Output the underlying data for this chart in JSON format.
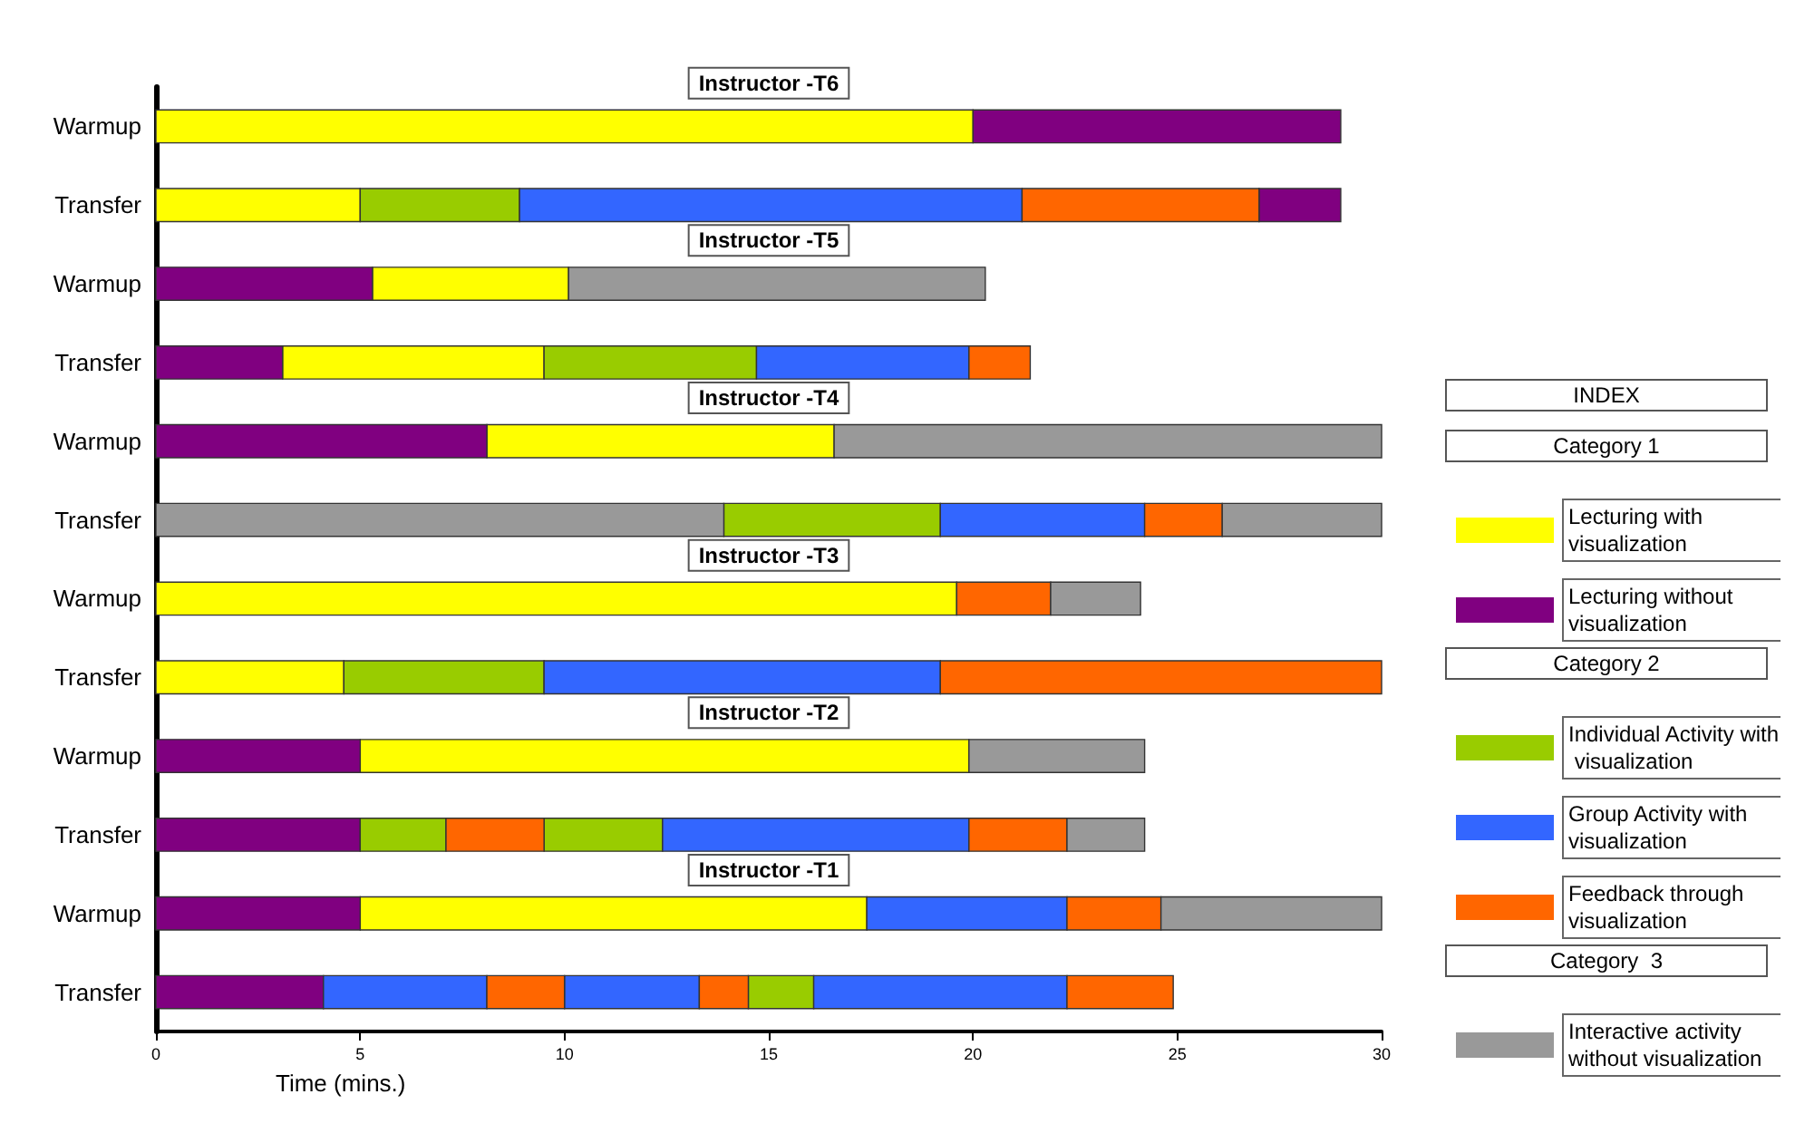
{
  "chart_data": {
    "type": "bar",
    "orientation": "horizontal",
    "legend": "right",
    "legend_title": "INDEX",
    "xlabel": "Time (mins.)",
    "xlim": [
      0,
      30
    ],
    "xticks": [
      0,
      5,
      10,
      15,
      20,
      25,
      30
    ],
    "categories": [
      "Warmup",
      "Transfer",
      "Warmup",
      "Transfer",
      "Warmup",
      "Transfer",
      "Warmup",
      "Transfer",
      "Warmup",
      "Transfer",
      "Warmup",
      "Transfer"
    ],
    "annotations": [
      "Instructor -T6",
      "Instructor -T5",
      "Instructor -T4",
      "Instructor -T3",
      "Instructor -T2",
      "Instructor -T1",
      "Category 1",
      "Category 2",
      "Category  3"
    ],
    "series": [
      {
        "name": "Lecturing with visualization",
        "color": "#ffff00",
        "base": [
          0,
          0,
          5.3,
          3.1,
          8.1,
          null,
          0,
          0,
          5,
          null,
          5,
          null
        ],
        "values": [
          20,
          5,
          4.8,
          6.4,
          8.5,
          null,
          19.6,
          4.6,
          14.9,
          null,
          12.4,
          null
        ]
      },
      {
        "name": "Lecturing without visualization",
        "color": "#800080",
        "base": [
          20,
          27,
          0,
          0,
          0,
          null,
          null,
          null,
          0,
          0,
          0,
          0
        ],
        "values": [
          9,
          2,
          5.3,
          3.1,
          8.1,
          null,
          null,
          null,
          5,
          5,
          5,
          4.1
        ]
      },
      {
        "name": "Individual Activity with visualization",
        "color": "#99cc00",
        "base": [
          null,
          5,
          null,
          9.5,
          null,
          13.9,
          null,
          4.6,
          null,
          5,
          null,
          14.5
        ],
        "values": [
          null,
          3.9,
          null,
          5.2,
          null,
          5.3,
          null,
          4.9,
          null,
          2.1,
          null,
          1.6
        ]
      },
      {
        "color": "#99cc00",
        "base": [
          null,
          null,
          null,
          null,
          null,
          null,
          null,
          null,
          null,
          9.5,
          null,
          null
        ],
        "values": [
          null,
          null,
          null,
          null,
          null,
          null,
          null,
          null,
          null,
          2.9,
          null,
          null
        ]
      },
      {
        "name": "Group Activity with visualization",
        "color": "#3366ff",
        "base": [
          null,
          8.9,
          null,
          14.7,
          null,
          19.2,
          null,
          9.5,
          null,
          12.4,
          17.4,
          4.1
        ],
        "values": [
          null,
          12.3,
          null,
          5.2,
          null,
          5,
          null,
          9.7,
          null,
          7.5,
          4.9,
          4
        ]
      },
      {
        "color": "#3366ff",
        "base": [
          null,
          null,
          null,
          null,
          null,
          null,
          null,
          null,
          null,
          null,
          null,
          10
        ],
        "values": [
          null,
          null,
          null,
          null,
          null,
          null,
          null,
          null,
          null,
          null,
          null,
          3.3
        ]
      },
      {
        "color": "#3366ff",
        "base": [
          null,
          null,
          null,
          null,
          null,
          null,
          null,
          null,
          null,
          null,
          null,
          16.1
        ],
        "values": [
          null,
          null,
          null,
          null,
          null,
          null,
          null,
          null,
          null,
          null,
          null,
          6.2
        ]
      },
      {
        "name": "Feedback through visualization",
        "color": "#ff6600",
        "base": [
          null,
          21.2,
          null,
          19.9,
          null,
          24.2,
          19.6,
          19.2,
          null,
          7.1,
          22.3,
          8.1
        ],
        "values": [
          null,
          5.8,
          null,
          1.5,
          null,
          1.9,
          2.3,
          10.8,
          null,
          2.4,
          2.3,
          1.9
        ]
      },
      {
        "color": "#ff6600",
        "base": [
          null,
          null,
          null,
          null,
          null,
          null,
          null,
          null,
          null,
          19.9,
          null,
          13.3
        ],
        "values": [
          null,
          null,
          null,
          null,
          null,
          null,
          null,
          null,
          null,
          2.4,
          null,
          1.2
        ]
      },
      {
        "color": "#ff6600",
        "base": [
          null,
          null,
          null,
          null,
          null,
          null,
          null,
          null,
          null,
          null,
          null,
          22.3
        ],
        "values": [
          null,
          null,
          null,
          null,
          null,
          null,
          null,
          null,
          null,
          null,
          null,
          2.6
        ]
      },
      {
        "name": "Interactive activity without visualization",
        "color": "#999999",
        "base": [
          null,
          null,
          10.1,
          null,
          16.6,
          0,
          21.9,
          null,
          19.9,
          22.3,
          24.6,
          null
        ],
        "values": [
          null,
          null,
          10.2,
          null,
          13.4,
          13.9,
          2.2,
          null,
          4.3,
          1.9,
          5.4,
          null
        ]
      },
      {
        "color": "#999999",
        "base": [
          null,
          null,
          null,
          null,
          null,
          26.1,
          null,
          null,
          null,
          null,
          null,
          null
        ],
        "values": [
          null,
          null,
          null,
          null,
          null,
          3.9,
          null,
          null,
          null,
          null,
          null,
          null
        ]
      }
    ]
  }
}
